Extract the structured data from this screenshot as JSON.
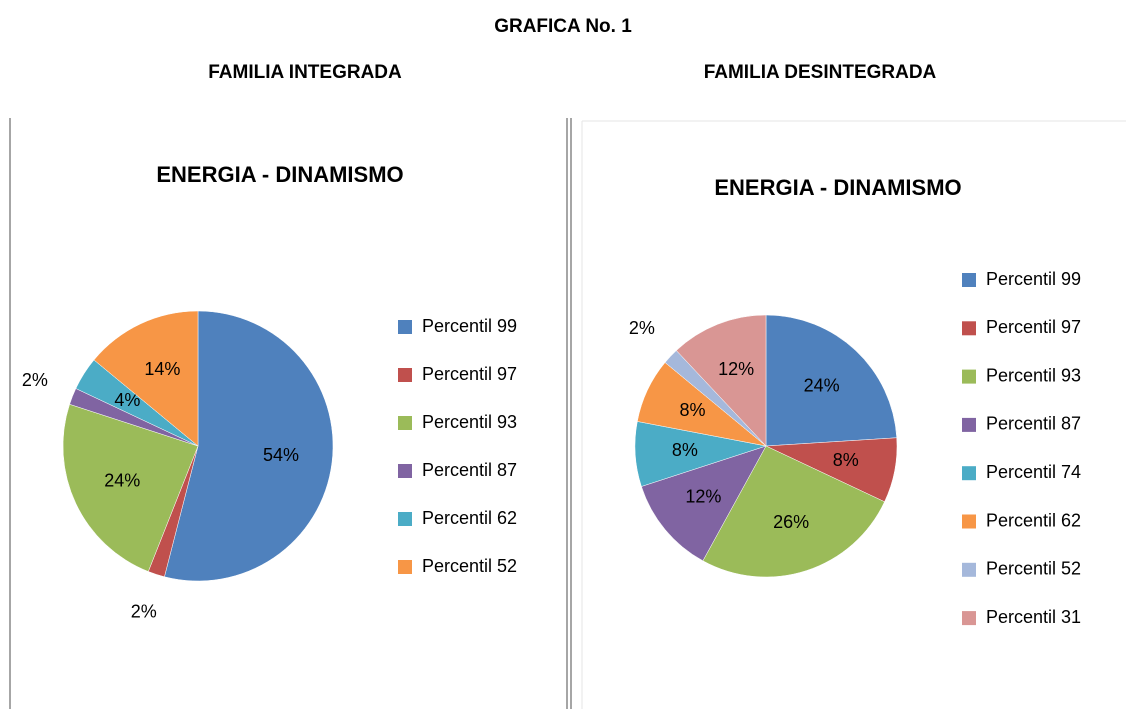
{
  "title": "GRAFICA No. 1",
  "chart_data": [
    {
      "type": "pie",
      "subtitle": "FAMILIA INTEGRADA",
      "title": "ENERGIA - DINAMISMO",
      "categories": [
        "Percentil 99",
        "Percentil 97",
        "Percentil 93",
        "Percentil 87",
        "Percentil 62",
        "Percentil 52"
      ],
      "values": [
        54,
        2,
        24,
        2,
        4,
        14
      ],
      "value_labels": [
        "54%",
        "2%",
        "24%",
        "2%",
        "4%",
        "14%"
      ],
      "colors": [
        "#4f81bd",
        "#c0504d",
        "#9bbb59",
        "#8064a2",
        "#4bacc6",
        "#f79646"
      ],
      "legend": "right"
    },
    {
      "type": "pie",
      "subtitle": "FAMILIA DESINTEGRADA",
      "title": "ENERGIA - DINAMISMO",
      "categories": [
        "Percentil 99",
        "Percentil 97",
        "Percentil 93",
        "Percentil 87",
        "Percentil 74",
        "Percentil 62",
        "Percentil 52",
        "Percentil 31"
      ],
      "values": [
        24,
        8,
        26,
        12,
        8,
        8,
        2,
        12
      ],
      "value_labels": [
        "24%",
        "8%",
        "26%",
        "12%",
        "8%",
        "8%",
        "2%",
        "12%"
      ],
      "colors": [
        "#4f81bd",
        "#c0504d",
        "#9bbb59",
        "#8064a2",
        "#4bacc6",
        "#f79646",
        "#a5b8db",
        "#d99694"
      ],
      "legend": "right"
    }
  ]
}
